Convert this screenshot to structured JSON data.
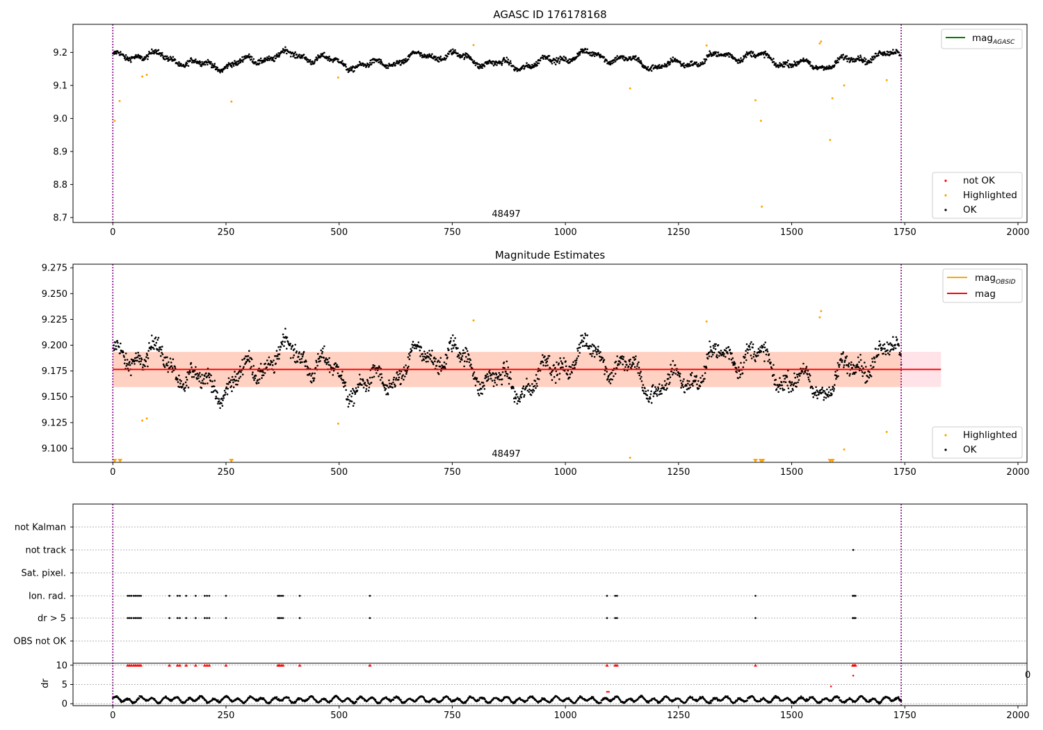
{
  "chart_data": [
    {
      "type": "scatter",
      "title": "AGASC ID 176178168",
      "xlim": [
        -88,
        2020
      ],
      "ylim": [
        8.685,
        9.285
      ],
      "xticks": [
        0,
        250,
        500,
        750,
        1000,
        1250,
        1500,
        1750,
        2000
      ],
      "yticks": [
        8.7,
        8.8,
        8.9,
        9.0,
        9.1,
        9.2
      ],
      "vlines": [
        0,
        1742
      ],
      "annotation": "48497",
      "legend_lines": [
        {
          "label": "mag",
          "sub": "AGASC",
          "color": "#008000"
        }
      ],
      "legend_points": [
        {
          "label": "not OK",
          "color": "#ff0000"
        },
        {
          "label": "Highlighted",
          "color": "#ffa500"
        },
        {
          "label": "OK",
          "color": "#000000"
        }
      ],
      "series": [
        {
          "name": "OK",
          "color": "#000000",
          "model": "curve",
          "x_range": [
            0,
            1742
          ],
          "count": 1742
        },
        {
          "name": "Highlighted",
          "color": "#ffa500",
          "x": [
            4,
            15,
            65,
            75,
            262,
            498,
            797,
            1143,
            1312,
            1420,
            1432,
            1434,
            1562,
            1565,
            1585,
            1590,
            1616,
            1710
          ],
          "y": [
            8.993,
            9.053,
            9.127,
            9.132,
            9.051,
            9.124,
            9.222,
            9.091,
            9.221,
            9.055,
            8.993,
            8.733,
            9.227,
            9.233,
            8.935,
            9.061,
            9.1,
            9.116
          ]
        }
      ]
    },
    {
      "type": "scatter",
      "title": "Magnitude Estimates",
      "xlim": [
        -88,
        2020
      ],
      "ylim": [
        9.0865,
        9.2785
      ],
      "xticks": [
        0,
        250,
        500,
        750,
        1000,
        1250,
        1500,
        1750,
        2000
      ],
      "yticks": [
        9.1,
        9.125,
        9.15,
        9.175,
        9.2,
        9.225,
        9.25,
        9.275
      ],
      "ytick_labels": [
        "9.100",
        "9.125",
        "9.150",
        "9.175",
        "9.200",
        "9.225",
        "9.250",
        "9.275"
      ],
      "vlines": [
        0,
        1742
      ],
      "annotation": "48497",
      "mean_mag": 9.1765,
      "band_obsid": {
        "x": [
          0,
          1742
        ],
        "y": [
          9.1595,
          9.1935
        ]
      },
      "band_mag": {
        "x": [
          0,
          1830
        ],
        "y": [
          9.1595,
          9.1935
        ]
      },
      "obsid_line": {
        "x": [
          0,
          1742
        ],
        "y": 9.1765
      },
      "legend_lines": [
        {
          "label": "mag",
          "sub": "OBSID",
          "color": "#ffa500"
        },
        {
          "label": "mag",
          "sub": "",
          "color": "#ff0000"
        }
      ],
      "legend_points": [
        {
          "label": "Highlighted",
          "color": "#ffa500"
        },
        {
          "label": "OK",
          "color": "#000000"
        }
      ],
      "series": [
        {
          "name": "OK",
          "color": "#000000",
          "model": "curve",
          "x_range": [
            0,
            1742
          ],
          "count": 1742
        },
        {
          "name": "Highlighted",
          "color": "#ffa500",
          "x": [
            65,
            75,
            498,
            797,
            1143,
            1312,
            1562,
            1565,
            1616,
            1710
          ],
          "y": [
            9.127,
            9.129,
            9.124,
            9.224,
            9.091,
            9.223,
            9.227,
            9.233,
            9.099,
            9.116
          ]
        },
        {
          "name": "Highlighted (below axis)",
          "color": "#ffa500",
          "marker": "triangle-down",
          "x": [
            4,
            16,
            262,
            1420,
            1432,
            1436,
            1585,
            1590
          ],
          "y": [
            9.0865,
            9.0865,
            9.0865,
            9.0865,
            9.0865,
            9.0865,
            9.0865,
            9.0865
          ]
        }
      ]
    },
    {
      "type": "scatter",
      "title": "",
      "xlim": [
        -88,
        2020
      ],
      "xticks": [
        0,
        250,
        500,
        750,
        1000,
        1250,
        1500,
        1750,
        2000
      ],
      "vlines": [
        0,
        1742
      ],
      "categories": [
        "not Kalman",
        "not track",
        "Sat. pixel.",
        "Ion. rad.",
        "dr > 5",
        "OBS not OK"
      ],
      "flags": [
        {
          "category": "not Kalman",
          "x": []
        },
        {
          "category": "not track",
          "x": [
            1636
          ]
        },
        {
          "category": "Sat. pixel.",
          "x": []
        },
        {
          "category": "Ion. rad.",
          "x": [
            33,
            37,
            41,
            46,
            50,
            54,
            58,
            62,
            125,
            143,
            148,
            162,
            183,
            203,
            208,
            213,
            250,
            365,
            368,
            372,
            376,
            413,
            568,
            1092,
            1110,
            1114,
            1420,
            1635,
            1638,
            1641
          ]
        },
        {
          "category": "dr > 5",
          "x": [
            33,
            37,
            41,
            46,
            50,
            54,
            58,
            62,
            125,
            143,
            148,
            162,
            183,
            203,
            208,
            213,
            250,
            365,
            368,
            372,
            376,
            413,
            568,
            1092,
            1110,
            1114,
            1420,
            1635,
            1638,
            1641
          ]
        },
        {
          "category": "OBS not OK",
          "x": []
        }
      ]
    },
    {
      "type": "scatter",
      "title": "",
      "xlim": [
        -88,
        2020
      ],
      "ylim": [
        -0.5,
        10.5
      ],
      "ylabel": "dr",
      "yticks": [
        0,
        5,
        10
      ],
      "xticks": [
        0,
        250,
        500,
        750,
        1000,
        1250,
        1500,
        1750,
        2000
      ],
      "vlines": [
        0,
        1742
      ],
      "right_tick_fragment": "0",
      "series": [
        {
          "name": "dr",
          "color": "#000000",
          "model": "curve",
          "x_range": [
            0,
            1742
          ],
          "count": 1742
        },
        {
          "name": "dr clipped",
          "color": "#ff0000",
          "marker": "triangle-up",
          "x": [
            33,
            37,
            41,
            46,
            50,
            54,
            58,
            62,
            125,
            143,
            148,
            162,
            183,
            203,
            208,
            213,
            250,
            365,
            368,
            372,
            376,
            413,
            568,
            1092,
            1110,
            1114,
            1420,
            1635,
            1638,
            1641
          ],
          "y": [
            10,
            10,
            10,
            10,
            10,
            10,
            10,
            10,
            10,
            10,
            10,
            10,
            10,
            10,
            10,
            10,
            10,
            10,
            10,
            10,
            10,
            10,
            10,
            10,
            10,
            10,
            10,
            10,
            10,
            10
          ]
        },
        {
          "name": "dr outliers",
          "color": "#ff0000",
          "x": [
            1092,
            1096,
            1587,
            1636
          ],
          "y": [
            3.1,
            3.1,
            4.5,
            7.3
          ]
        }
      ]
    }
  ]
}
